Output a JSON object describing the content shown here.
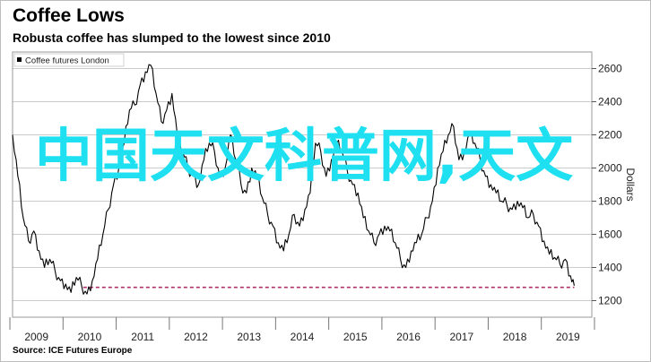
{
  "title": "Coffee Lows",
  "subtitle": "Robusta coffee has slumped to the lowest since 2010",
  "source": "Source: ICE Futures Europe",
  "watermark": "中国天文科普网,天文",
  "colors": {
    "line": "#000000",
    "threshold": "#b0306a",
    "watermark": "#1ee0f0",
    "grid": "#cccccc"
  },
  "chart_data": {
    "type": "line",
    "title": "Coffee Lows",
    "subtitle": "Robusta coffee has slumped to the lowest since 2010",
    "xlabel": "",
    "ylabel": "Dollars",
    "xlim": [
      2008.55,
      2019.45
    ],
    "ylim": [
      1100,
      2700
    ],
    "x_ticks": [
      2009,
      2010,
      2011,
      2012,
      2013,
      2014,
      2015,
      2016,
      2017,
      2018,
      2019
    ],
    "y_ticks": [
      1200,
      1400,
      1600,
      1800,
      2000,
      2200,
      2400,
      2600
    ],
    "y_axis_side": "right",
    "grid": "horizontal",
    "legend": {
      "position": "top-left",
      "entries": [
        "Coffee futures London"
      ]
    },
    "series": [
      {
        "name": "Coffee futures London",
        "x": [
          2008.55,
          2008.65,
          2008.75,
          2008.85,
          2008.95,
          2009.05,
          2009.15,
          2009.25,
          2009.35,
          2009.45,
          2009.55,
          2009.65,
          2009.75,
          2009.85,
          2009.95,
          2010.05,
          2010.15,
          2010.25,
          2010.35,
          2010.45,
          2010.55,
          2010.65,
          2010.75,
          2010.85,
          2010.95,
          2011.05,
          2011.15,
          2011.25,
          2011.35,
          2011.45,
          2011.55,
          2011.65,
          2011.75,
          2011.85,
          2011.95,
          2012.05,
          2012.15,
          2012.25,
          2012.35,
          2012.45,
          2012.55,
          2012.65,
          2012.75,
          2012.85,
          2012.95,
          2013.05,
          2013.15,
          2013.25,
          2013.35,
          2013.45,
          2013.55,
          2013.65,
          2013.75,
          2013.85,
          2013.95,
          2014.05,
          2014.15,
          2014.25,
          2014.35,
          2014.45,
          2014.55,
          2014.65,
          2014.75,
          2014.85,
          2014.95,
          2015.05,
          2015.15,
          2015.25,
          2015.35,
          2015.45,
          2015.55,
          2015.65,
          2015.75,
          2015.85,
          2015.95,
          2016.05,
          2016.15,
          2016.25,
          2016.35,
          2016.45,
          2016.55,
          2016.65,
          2016.75,
          2016.85,
          2016.95,
          2017.05,
          2017.15,
          2017.25,
          2017.35,
          2017.45,
          2017.55,
          2017.65,
          2017.75,
          2017.85,
          2017.95,
          2018.05,
          2018.15,
          2018.25,
          2018.35,
          2018.45,
          2018.55,
          2018.65,
          2018.75,
          2018.85,
          2018.95,
          2019.05,
          2019.12
        ],
        "values": [
          2200,
          1950,
          1700,
          1560,
          1620,
          1500,
          1400,
          1450,
          1380,
          1320,
          1300,
          1250,
          1340,
          1290,
          1240,
          1320,
          1450,
          1600,
          1750,
          1900,
          2000,
          2150,
          2350,
          2380,
          2500,
          2580,
          2620,
          2450,
          2280,
          2350,
          2450,
          2200,
          2100,
          2000,
          1950,
          1900,
          2050,
          2150,
          2100,
          1950,
          2000,
          2200,
          2050,
          1900,
          1850,
          2000,
          1950,
          1820,
          1720,
          1650,
          1550,
          1500,
          1600,
          1720,
          1650,
          1750,
          1850,
          2150,
          2100,
          1950,
          2050,
          2150,
          2100,
          1980,
          1900,
          1850,
          1700,
          1620,
          1550,
          1600,
          1650,
          1620,
          1550,
          1450,
          1400,
          1500,
          1550,
          1600,
          1700,
          1800,
          2000,
          2100,
          2200,
          2250,
          2050,
          2100,
          2200,
          2150,
          2050,
          1950,
          1900,
          1850,
          1800,
          1780,
          1750,
          1800,
          1760,
          1700,
          1720,
          1650,
          1560,
          1480,
          1460,
          1420,
          1450,
          1350,
          1290
        ]
      }
    ],
    "reference_lines": [
      {
        "y": 1280,
        "x_start": 2009.88,
        "x_end": 2019.12,
        "style": "dashed"
      }
    ]
  }
}
